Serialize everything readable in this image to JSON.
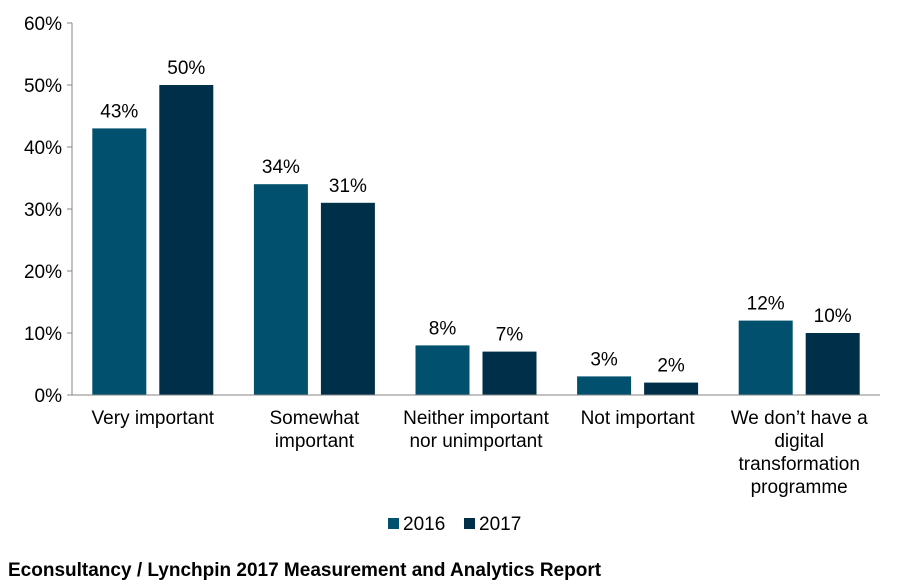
{
  "chart_data": {
    "type": "bar",
    "categories": [
      "Very important",
      "Somewhat important",
      "Neither important nor unimportant",
      "Not important",
      "We don’t have a digital transformation programme"
    ],
    "category_lines": [
      [
        "Very important"
      ],
      [
        "Somewhat",
        "important"
      ],
      [
        "Neither important",
        "nor unimportant"
      ],
      [
        "Not important"
      ],
      [
        "We don’t have a",
        "digital",
        "transformation",
        "programme"
      ]
    ],
    "series": [
      {
        "name": "2016",
        "values": [
          43,
          34,
          8,
          3,
          12
        ],
        "labels": [
          "43%",
          "34%",
          "8%",
          "3%",
          "12%"
        ],
        "color": "#00506e"
      },
      {
        "name": "2017",
        "values": [
          50,
          31,
          7,
          2,
          10
        ],
        "labels": [
          "50%",
          "31%",
          "7%",
          "2%",
          "10%"
        ],
        "color": "#003049"
      }
    ],
    "ylim": [
      0,
      60
    ],
    "yticks": [
      0,
      10,
      20,
      30,
      40,
      50,
      60
    ],
    "ytick_labels": [
      "0%",
      "10%",
      "20%",
      "30%",
      "40%",
      "50%",
      "60%"
    ],
    "grid": false,
    "legend_position": "bottom-center"
  },
  "source_note": "Econsultancy / Lynchpin 2017 Measurement and Analytics Report"
}
